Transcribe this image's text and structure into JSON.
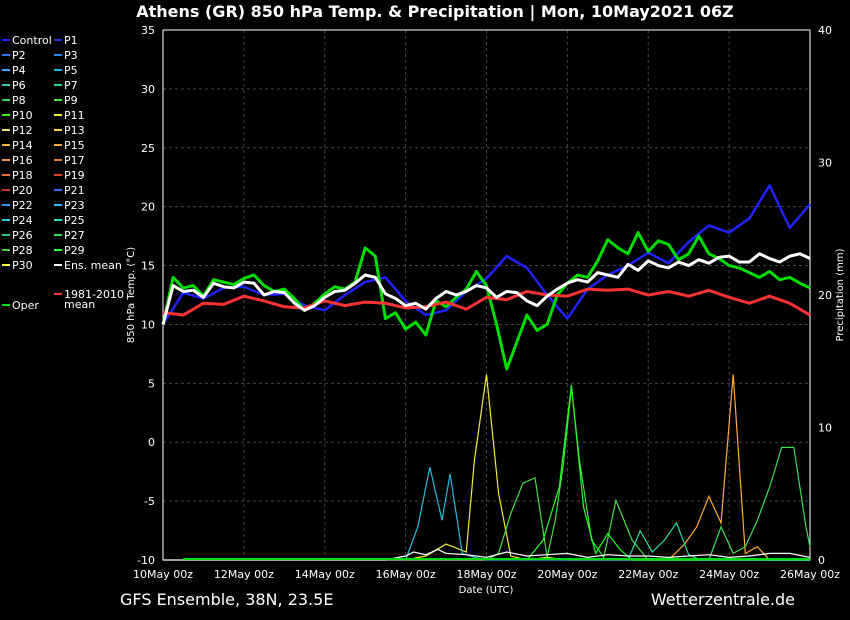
{
  "chart_data": {
    "type": "line",
    "title": "Athens  (GR)  850 hPa Temp. & Precipitation | Mon, 10May2021 06Z",
    "ylabel": "850 hPa Temp. (°C)",
    "y2label": "Precipitation (mm)",
    "xlabel": "Date (UTC)",
    "ylim": [
      -10,
      35
    ],
    "y2lim": [
      0,
      40
    ],
    "yticks": [
      "35",
      "30",
      "25",
      "20",
      "15",
      "10",
      "5",
      "0",
      "-5",
      "-10"
    ],
    "y2ticks": [
      "40",
      "30",
      "20",
      "10",
      "0"
    ],
    "xlim_days": [
      10,
      26
    ],
    "xticks": [
      "10May 00z",
      "12May 00z",
      "14May 00z",
      "16May 00z",
      "18May 00z",
      "20May 00z",
      "22May 00z",
      "24May 00z",
      "26May 00z"
    ],
    "grid": true,
    "legend_position": "left",
    "legend": [
      {
        "name": "Control",
        "color": "#2222ff"
      },
      {
        "name": "P1",
        "color": "#2233ee"
      },
      {
        "name": "P2",
        "color": "#3377ff"
      },
      {
        "name": "P3",
        "color": "#2288ff"
      },
      {
        "name": "P4",
        "color": "#33aaff"
      },
      {
        "name": "P5",
        "color": "#22bbdd"
      },
      {
        "name": "P6",
        "color": "#33ccbb"
      },
      {
        "name": "P7",
        "color": "#22dd99"
      },
      {
        "name": "P8",
        "color": "#33cc66"
      },
      {
        "name": "P9",
        "color": "#44dd44"
      },
      {
        "name": "P10",
        "color": "#33ff00"
      },
      {
        "name": "P11",
        "color": "#eeee33"
      },
      {
        "name": "P12",
        "color": "#eedd55"
      },
      {
        "name": "P13",
        "color": "#eecc44"
      },
      {
        "name": "P14",
        "color": "#eebb33"
      },
      {
        "name": "P15",
        "color": "#ffaa33"
      },
      {
        "name": "P16",
        "color": "#ee9955"
      },
      {
        "name": "P17",
        "color": "#ee7744"
      },
      {
        "name": "P18",
        "color": "#ee6633"
      },
      {
        "name": "P19",
        "color": "#dd4422"
      },
      {
        "name": "P20",
        "color": "#cc3333"
      },
      {
        "name": "P21",
        "color": "#3366ff"
      },
      {
        "name": "P22",
        "color": "#3399ff"
      },
      {
        "name": "P23",
        "color": "#33bbff"
      },
      {
        "name": "P24",
        "color": "#22ccdd"
      },
      {
        "name": "P25",
        "color": "#22ddbb"
      },
      {
        "name": "P26",
        "color": "#22cc88"
      },
      {
        "name": "P27",
        "color": "#33dd55"
      },
      {
        "name": "P28",
        "color": "#44cc44"
      },
      {
        "name": "P29",
        "color": "#22ff22"
      },
      {
        "name": "P30",
        "color": "#ffff33"
      },
      {
        "name": "Ens. mean",
        "color": "#ffffff"
      },
      {
        "name": "1981-2010\nmean",
        "color": "#ff3333"
      },
      {
        "name": "Oper",
        "color": "#00dd00"
      }
    ],
    "series": [
      {
        "name": "Ens. mean",
        "color": "#ffffff",
        "width": 3,
        "x": [
          10,
          10.25,
          10.5,
          10.75,
          11,
          11.25,
          11.5,
          11.75,
          12,
          12.25,
          12.5,
          12.75,
          13,
          13.25,
          13.5,
          13.75,
          14,
          14.25,
          14.5,
          14.75,
          15,
          15.25,
          15.5,
          15.75,
          16,
          16.25,
          16.5,
          16.75,
          17,
          17.25,
          17.5,
          17.75,
          18,
          18.25,
          18.5,
          18.75,
          19,
          19.25,
          19.5,
          19.75,
          20,
          20.25,
          20.5,
          20.75,
          21,
          21.25,
          21.5,
          21.75,
          22,
          22.25,
          22.5,
          22.75,
          23,
          23.25,
          23.5,
          23.75,
          24,
          24.25,
          24.5,
          24.75,
          25,
          25.25,
          25.5,
          25.75,
          26
        ],
        "y": [
          10,
          13.3,
          12.8,
          12.9,
          12.3,
          13.5,
          13.2,
          13.1,
          13.6,
          13.5,
          12.5,
          12.8,
          12.7,
          11.8,
          11.2,
          11.6,
          12.3,
          12.8,
          12.9,
          13.5,
          14.2,
          14.0,
          12.6,
          12.2,
          11.6,
          11.8,
          11.3,
          12.2,
          12.8,
          12.5,
          12.8,
          13.3,
          13.1,
          12.3,
          12.8,
          12.7,
          12.0,
          11.6,
          12.4,
          13.0,
          13.5,
          13.8,
          13.6,
          14.4,
          14.2,
          14.0,
          15.1,
          14.6,
          15.4,
          15.0,
          14.8,
          15.3,
          15.0,
          15.5,
          15.2,
          15.7,
          15.8,
          15.3,
          15.3,
          16.0,
          15.6,
          15.3,
          15.8,
          16.0,
          15.6
        ]
      },
      {
        "name": "1981-2010 mean",
        "color": "#ff3333",
        "width": 3,
        "x": [
          10,
          10.5,
          11,
          11.5,
          12,
          12.5,
          13,
          13.5,
          14,
          14.5,
          15,
          15.5,
          16,
          16.5,
          17,
          17.5,
          18,
          18.5,
          19,
          19.5,
          20,
          20.5,
          21,
          21.5,
          22,
          22.5,
          23,
          23.5,
          24,
          24.5,
          25,
          25.5,
          26
        ],
        "y": [
          11.0,
          10.8,
          11.8,
          11.7,
          12.4,
          12.0,
          11.5,
          11.4,
          12.0,
          11.6,
          11.9,
          11.8,
          11.4,
          11.5,
          11.9,
          11.3,
          12.3,
          12.1,
          12.8,
          12.5,
          12.4,
          13.0,
          12.9,
          13.0,
          12.5,
          12.8,
          12.4,
          12.9,
          12.3,
          11.8,
          12.4,
          11.8,
          10.8
        ]
      },
      {
        "name": "Oper",
        "color": "#00dd00",
        "width": 3,
        "x": [
          10,
          10.25,
          10.5,
          10.75,
          11,
          11.25,
          11.5,
          11.75,
          12,
          12.25,
          12.5,
          12.75,
          13,
          13.25,
          13.5,
          13.75,
          14,
          14.25,
          14.5,
          14.75,
          15,
          15.25,
          15.5,
          15.75,
          16,
          16.25,
          16.5,
          16.75,
          17,
          17.25,
          17.5,
          17.75,
          18,
          18.25,
          18.5,
          18.75,
          19,
          19.25,
          19.5,
          19.75,
          20,
          20.25,
          20.5,
          20.75,
          21,
          21.25,
          21.5,
          21.75,
          22,
          22.25,
          22.5,
          22.75,
          23,
          23.25,
          23.5,
          23.75,
          24,
          24.25,
          24.5,
          24.75,
          25,
          25.25,
          25.5,
          25.75,
          26
        ],
        "y": [
          10,
          14.0,
          13.1,
          13.3,
          12.4,
          13.8,
          13.6,
          13.4,
          13.9,
          14.2,
          13.3,
          12.8,
          13.0,
          12.2,
          11.2,
          11.8,
          12.6,
          13.2,
          13.0,
          13.6,
          16.5,
          15.8,
          10.5,
          11.0,
          9.6,
          10.2,
          9.1,
          12.0,
          11.5,
          12.3,
          13.0,
          14.5,
          13.3,
          10.0,
          6.2,
          8.5,
          10.8,
          9.5,
          10.0,
          12.5,
          13.5,
          14.2,
          14.0,
          15.4,
          17.2,
          16.5,
          16.0,
          17.8,
          16.2,
          17.1,
          16.8,
          15.5,
          16.0,
          17.5,
          16.0,
          15.6,
          15.0,
          14.8,
          14.4,
          14.0,
          14.5,
          13.8,
          14.0,
          13.5,
          13.1
        ]
      },
      {
        "name": "Control",
        "color": "#2222ff",
        "width": 2.5,
        "x": [
          10,
          10.5,
          11,
          11.5,
          12,
          12.5,
          13,
          13.5,
          14,
          14.5,
          15,
          15.5,
          16,
          16.5,
          17,
          17.5,
          18,
          18.5,
          19,
          19.5,
          20,
          20.5,
          21,
          21.5,
          22,
          22.5,
          23,
          23.5,
          24,
          24.5,
          25,
          25.5,
          26
        ],
        "y": [
          10,
          12.7,
          12.2,
          13.1,
          13.2,
          12.5,
          12.6,
          11.6,
          11.2,
          12.5,
          13.6,
          14.0,
          12.0,
          10.8,
          11.2,
          12.8,
          13.9,
          15.8,
          14.8,
          12.5,
          10.5,
          13.0,
          14.2,
          15.0,
          16.1,
          15.2,
          17.0,
          18.4,
          17.8,
          19.0,
          21.8,
          18.2,
          20.2
        ]
      }
    ],
    "precip_series": [
      {
        "name": "P11",
        "color": "#eeee33",
        "x": [
          16,
          16.5,
          17,
          17.5,
          17.7,
          18,
          18.3,
          18.6,
          19,
          19.5,
          20,
          26
        ],
        "y": [
          0,
          0.3,
          1.2,
          0.6,
          7.5,
          14.0,
          5.0,
          0.3,
          0,
          0.2,
          0,
          0
        ]
      },
      {
        "name": "P5",
        "color": "#22bbdd",
        "x": [
          16,
          16.3,
          16.6,
          16.9,
          17.1,
          17.4,
          17.7,
          18,
          26
        ],
        "y": [
          0,
          2.5,
          7.0,
          3.0,
          6.5,
          0.5,
          0.2,
          0,
          0
        ]
      },
      {
        "name": "P9",
        "color": "#44dd44",
        "x": [
          18,
          18.3,
          18.6,
          18.9,
          19.2,
          19.5,
          19.7,
          19.9,
          20.1,
          20.3,
          20.6,
          20.9,
          21.2,
          21.6,
          22,
          26
        ],
        "y": [
          0,
          0.5,
          3.5,
          5.8,
          6.2,
          0.2,
          3.0,
          7.2,
          13.0,
          7.5,
          1.5,
          0.2,
          4.5,
          1.5,
          0,
          0
        ]
      },
      {
        "name": "P29",
        "color": "#22ff22",
        "x": [
          19,
          19.4,
          19.8,
          20.1,
          20.4,
          20.7,
          21,
          21.3,
          21.6,
          22,
          26
        ],
        "y": [
          0,
          1.5,
          5.5,
          13.2,
          4.0,
          0.5,
          2.0,
          0.8,
          0,
          0,
          0
        ]
      },
      {
        "name": "P15",
        "color": "#ffaa33",
        "x": [
          22.5,
          22.9,
          23.2,
          23.5,
          23.8,
          24.1,
          24.4,
          24.7,
          25,
          26
        ],
        "y": [
          0,
          1.2,
          2.5,
          4.8,
          2.8,
          14.0,
          0.5,
          1.0,
          0,
          0
        ]
      },
      {
        "name": "P27",
        "color": "#33dd55",
        "x": [
          23.5,
          23.8,
          24.1,
          24.4,
          24.7,
          25,
          25.3,
          25.6,
          25.9,
          26
        ],
        "y": [
          0,
          2.5,
          0.5,
          1.0,
          3.0,
          5.5,
          8.5,
          8.5,
          2.5,
          1.0
        ]
      },
      {
        "name": "P7",
        "color": "#22dd99",
        "x": [
          21.5,
          21.8,
          22.1,
          22.4,
          22.7,
          23,
          23.3,
          26
        ],
        "y": [
          0,
          2.2,
          0.6,
          1.5,
          2.8,
          0.4,
          0,
          0
        ]
      },
      {
        "name": "Ens. mean",
        "color": "#ffffff",
        "x": [
          10,
          15.5,
          16,
          16.2,
          16.5,
          16.8,
          17,
          17.5,
          18,
          18.5,
          19,
          19.5,
          20,
          20.5,
          21,
          21.5,
          22,
          22.5,
          23,
          23.5,
          24,
          24.5,
          25,
          25.5,
          26
        ],
        "y": [
          0,
          0,
          0.3,
          0.6,
          0.4,
          0.8,
          0.5,
          0.4,
          0.2,
          0.6,
          0.3,
          0.4,
          0.5,
          0.2,
          0.4,
          0.3,
          0.3,
          0.2,
          0.3,
          0.4,
          0.2,
          0.3,
          0.5,
          0.5,
          0.2
        ]
      }
    ]
  },
  "footer": {
    "left": "GFS Ensemble, 38N, 23.5E",
    "right": "Wetterzentrale.de"
  }
}
